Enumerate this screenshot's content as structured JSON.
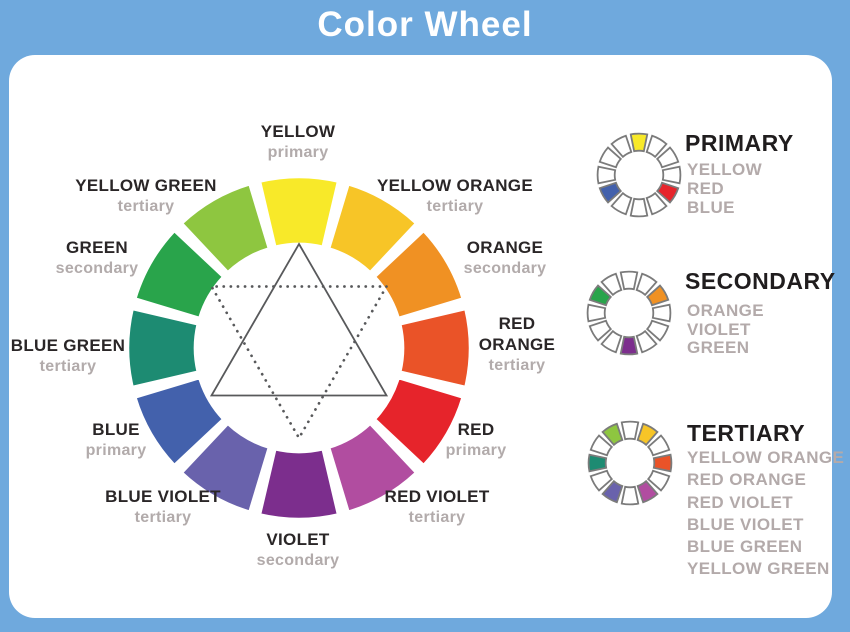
{
  "title": "Color Wheel",
  "colors": {
    "background": "#6fa9dd",
    "panel": "#ffffff",
    "label_dark": "#2a2627",
    "label_gray": "#b2abab",
    "mini_outline": "#7b7b7b",
    "triangle_line": "#58595b"
  },
  "wheel": {
    "segments": [
      {
        "name": "YELLOW",
        "type": "primary",
        "color": "#f8e929",
        "angle": 0
      },
      {
        "name": "YELLOW ORANGE",
        "type": "tertiary",
        "color": "#f7c527",
        "angle": 30
      },
      {
        "name": "ORANGE",
        "type": "secondary",
        "color": "#f09123",
        "angle": 60
      },
      {
        "name": "RED ORANGE",
        "type": "tertiary",
        "color": "#ea5328",
        "angle": 90
      },
      {
        "name": "RED",
        "type": "primary",
        "color": "#e6242b",
        "angle": 120
      },
      {
        "name": "RED VIOLET",
        "type": "tertiary",
        "color": "#b14da0",
        "angle": 150
      },
      {
        "name": "VIOLET",
        "type": "secondary",
        "color": "#7c2e8d",
        "angle": 180
      },
      {
        "name": "BLUE VIOLET",
        "type": "tertiary",
        "color": "#6962ac",
        "angle": 210
      },
      {
        "name": "BLUE",
        "type": "primary",
        "color": "#4361ac",
        "angle": 240
      },
      {
        "name": "BLUE GREEN",
        "type": "tertiary",
        "color": "#1d8b72",
        "angle": 270
      },
      {
        "name": "GREEN",
        "type": "secondary",
        "color": "#29a44b",
        "angle": 300
      },
      {
        "name": "YELLOW GREEN",
        "type": "tertiary",
        "color": "#8ec640",
        "angle": 330
      }
    ],
    "solid_triangle_angles": [
      0,
      120,
      240
    ],
    "dotted_triangle_angles": [
      60,
      180,
      300
    ]
  },
  "legend": [
    {
      "heading": "PRIMARY",
      "items": [
        "YELLOW",
        "RED",
        "BLUE"
      ],
      "angles": [
        0,
        120,
        240
      ]
    },
    {
      "heading": "SECONDARY",
      "items": [
        "ORANGE",
        "VIOLET",
        "GREEN"
      ],
      "angles": [
        60,
        180,
        300
      ]
    },
    {
      "heading": "TERTIARY",
      "items": [
        "YELLOW ORANGE",
        "RED  ORANGE",
        "RED VIOLET",
        "BLUE VIOLET",
        "BLUE GREEN",
        "YELLOW GREEN"
      ],
      "angles": [
        30,
        90,
        150,
        210,
        270,
        330
      ]
    }
  ]
}
